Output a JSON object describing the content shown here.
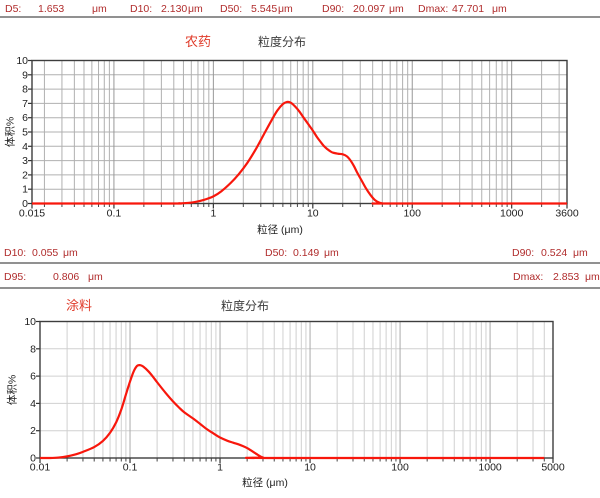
{
  "header": {
    "stats": [
      {
        "label": "D5:",
        "value": "1.653",
        "unit": "μm"
      },
      {
        "label": "D10:",
        "value": "2.130",
        "unit": "μm"
      },
      {
        "label": "D50:",
        "value": "5.545",
        "unit": "μm"
      },
      {
        "label": "D90:",
        "value": "20.097",
        "unit": "μm"
      },
      {
        "label": "Dmax:",
        "value": "47.701",
        "unit": "μm"
      }
    ]
  },
  "mid_stats": {
    "row1": [
      {
        "label": "D10:",
        "value": "0.055",
        "unit": "μm"
      },
      {
        "label": "D50:",
        "value": "0.149",
        "unit": "μm"
      },
      {
        "label": "D90:",
        "value": "0.524",
        "unit": "μm"
      }
    ],
    "row2": [
      {
        "label": "D95:",
        "value": "0.806",
        "unit": "μm"
      },
      {
        "label": "Dmax:",
        "value": "2.853",
        "unit": "μm"
      }
    ]
  },
  "colors": {
    "curve_red": "#f8170c",
    "accent_red": "#e03b2a",
    "stat_red": "#b02c2c",
    "grid_minor_c1": "#b0b0b0",
    "grid_major_c1": "#989898",
    "grid_minor_c2": "#d0d0d0",
    "grid_major_c2": "#aaaaaa",
    "frame": "#3d3d3d"
  },
  "chart_data": [
    {
      "type": "line",
      "sample_label": "农药",
      "title": "粒度分布",
      "xlabel": "粒径 (μm)",
      "ylabel": "体积%",
      "x_scale": "log",
      "xlim": [
        0.015,
        3600
      ],
      "ylim": [
        0,
        10
      ],
      "x_tick_labels": [
        "0.015",
        "0.1",
        "1",
        "10",
        "100",
        "1000",
        "3600"
      ],
      "y_tick_labels": [
        "0",
        "1",
        "2",
        "3",
        "4",
        "5",
        "6",
        "7",
        "8",
        "9",
        "10"
      ],
      "grid": true,
      "legend": "none",
      "stats": {
        "D5": 1.653,
        "D10": 2.13,
        "D50": 5.545,
        "D90": 20.097,
        "Dmax": 47.701
      },
      "series": [
        {
          "name": "体积%",
          "points": [
            [
              0.015,
              0
            ],
            [
              0.35,
              0
            ],
            [
              0.45,
              0.01
            ],
            [
              0.55,
              0.04
            ],
            [
              0.65,
              0.1
            ],
            [
              0.8,
              0.25
            ],
            [
              1,
              0.5
            ],
            [
              1.2,
              0.85
            ],
            [
              1.5,
              1.45
            ],
            [
              1.8,
              2.05
            ],
            [
              2.2,
              2.85
            ],
            [
              2.7,
              3.85
            ],
            [
              3.2,
              4.8
            ],
            [
              3.8,
              5.75
            ],
            [
              4.4,
              6.5
            ],
            [
              5,
              6.95
            ],
            [
              5.5,
              7.1
            ],
            [
              6,
              7.05
            ],
            [
              6.6,
              6.8
            ],
            [
              7.3,
              6.45
            ],
            [
              8,
              6.05
            ],
            [
              9,
              5.55
            ],
            [
              10,
              5.1
            ],
            [
              11,
              4.65
            ],
            [
              12,
              4.3
            ],
            [
              13,
              4.0
            ],
            [
              14,
              3.8
            ],
            [
              15,
              3.65
            ],
            [
              16,
              3.55
            ],
            [
              18,
              3.48
            ],
            [
              20,
              3.44
            ],
            [
              22,
              3.3
            ],
            [
              24,
              3.0
            ],
            [
              26,
              2.6
            ],
            [
              28,
              2.15
            ],
            [
              31,
              1.6
            ],
            [
              34,
              1.1
            ],
            [
              38,
              0.6
            ],
            [
              42,
              0.25
            ],
            [
              46,
              0.08
            ],
            [
              50,
              0.01
            ],
            [
              56,
              0
            ],
            [
              3600,
              0
            ]
          ]
        }
      ]
    },
    {
      "type": "line",
      "sample_label": "涂料",
      "title": "粒度分布",
      "xlabel": "粒径 (μm)",
      "ylabel": "体积%",
      "x_scale": "log",
      "xlim": [
        0.01,
        5000
      ],
      "ylim": [
        0,
        10
      ],
      "x_tick_labels": [
        "0.01",
        "0.1",
        "1",
        "10",
        "100",
        "1000",
        "5000"
      ],
      "y_tick_labels": [
        "0",
        "2",
        "4",
        "6",
        "8",
        "10"
      ],
      "grid": true,
      "legend": "none",
      "stats": {
        "D10": 0.055,
        "D50": 0.149,
        "D90": 0.524,
        "D95": 0.806,
        "Dmax": 2.853
      },
      "series": [
        {
          "name": "体积%",
          "points": [
            [
              0.01,
              0
            ],
            [
              0.013,
              0
            ],
            [
              0.016,
              0.03
            ],
            [
              0.02,
              0.12
            ],
            [
              0.025,
              0.27
            ],
            [
              0.03,
              0.45
            ],
            [
              0.04,
              0.8
            ],
            [
              0.05,
              1.25
            ],
            [
              0.06,
              1.85
            ],
            [
              0.07,
              2.6
            ],
            [
              0.08,
              3.55
            ],
            [
              0.09,
              4.65
            ],
            [
              0.1,
              5.6
            ],
            [
              0.11,
              6.35
            ],
            [
              0.12,
              6.75
            ],
            [
              0.13,
              6.8
            ],
            [
              0.14,
              6.7
            ],
            [
              0.16,
              6.35
            ],
            [
              0.18,
              5.95
            ],
            [
              0.2,
              5.55
            ],
            [
              0.25,
              4.75
            ],
            [
              0.3,
              4.15
            ],
            [
              0.35,
              3.7
            ],
            [
              0.4,
              3.35
            ],
            [
              0.5,
              2.9
            ],
            [
              0.6,
              2.5
            ],
            [
              0.7,
              2.15
            ],
            [
              0.8,
              1.9
            ],
            [
              0.9,
              1.68
            ],
            [
              1,
              1.5
            ],
            [
              1.2,
              1.27
            ],
            [
              1.4,
              1.12
            ],
            [
              1.6,
              1.0
            ],
            [
              1.8,
              0.87
            ],
            [
              2,
              0.73
            ],
            [
              2.2,
              0.56
            ],
            [
              2.4,
              0.4
            ],
            [
              2.6,
              0.25
            ],
            [
              2.8,
              0.12
            ],
            [
              3,
              0.04
            ],
            [
              3.4,
              0
            ],
            [
              4000,
              0
            ]
          ]
        }
      ]
    }
  ]
}
